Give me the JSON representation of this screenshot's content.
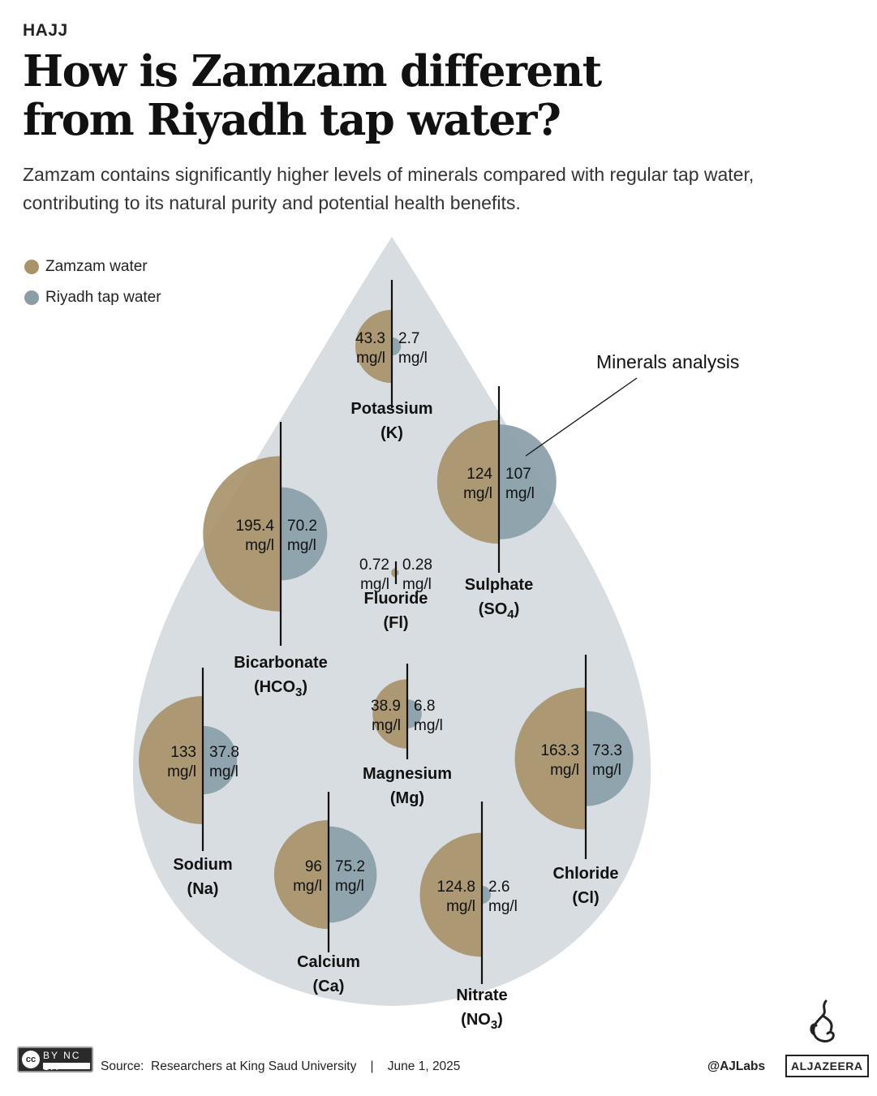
{
  "header": {
    "kicker": "HAJJ",
    "title": "How is Zamzam different from Riyadh tap water?",
    "subtitle": "Zamzam contains significantly higher levels of minerals compared with regular tap water, contributing to its natural purity and potential health benefits."
  },
  "legend": [
    {
      "label": "Zamzam water",
      "color": "#a8936a"
    },
    {
      "label": "Riyadh tap water",
      "color": "#8a9ea8"
    }
  ],
  "annotation": "Minerals analysis",
  "colors": {
    "drop": "#d7dde1",
    "zamzam": "#a8936a",
    "tap": "#8a9ea8",
    "axis": "#111111"
  },
  "chart_data": {
    "type": "paired semicircle (area) chart",
    "unit": "mg/l",
    "series": [
      {
        "name": "Zamzam water",
        "values": [
          43.3,
          124,
          195.4,
          0.72,
          38.9,
          163.3,
          133,
          96,
          124.8
        ]
      },
      {
        "name": "Riyadh tap water",
        "values": [
          2.7,
          107,
          70.2,
          0.28,
          6.8,
          73.3,
          37.8,
          75.2,
          2.6
        ]
      }
    ],
    "categories": [
      "Potassium (K)",
      "Sulphate (SO4)",
      "Bicarbonate (HCO3)",
      "Fluoride (Fl)",
      "Magnesium (Mg)",
      "Chloride (Cl)",
      "Sodium (Na)",
      "Calcium (Ca)",
      "Nitrate (NO3)"
    ],
    "minerals": [
      {
        "name": "Potassium",
        "symbol": "K",
        "zamzam": 43.3,
        "zamzam_label": "43.3",
        "tap": 2.7,
        "tap_label": "2.7"
      },
      {
        "name": "Sulphate",
        "symbol": "SO4",
        "zamzam": 124,
        "zamzam_label": "124",
        "tap": 107,
        "tap_label": "107"
      },
      {
        "name": "Bicarbonate",
        "symbol": "HCO3",
        "zamzam": 195.4,
        "zamzam_label": "195.4",
        "tap": 70.2,
        "tap_label": "70.2"
      },
      {
        "name": "Fluoride",
        "symbol": "Fl",
        "zamzam": 0.72,
        "zamzam_label": "0.72",
        "tap": 0.28,
        "tap_label": "0.28"
      },
      {
        "name": "Magnesium",
        "symbol": "Mg",
        "zamzam": 38.9,
        "zamzam_label": "38.9",
        "tap": 6.8,
        "tap_label": "6.8"
      },
      {
        "name": "Chloride",
        "symbol": "Cl",
        "zamzam": 163.3,
        "zamzam_label": "163.3",
        "tap": 73.3,
        "tap_label": "73.3"
      },
      {
        "name": "Sodium",
        "symbol": "Na",
        "zamzam": 133,
        "zamzam_label": "133",
        "tap": 37.8,
        "tap_label": "37.8"
      },
      {
        "name": "Calcium",
        "symbol": "Ca",
        "zamzam": 96,
        "zamzam_label": "96",
        "tap": 75.2,
        "tap_label": "75.2"
      },
      {
        "name": "Nitrate",
        "symbol": "NO3",
        "zamzam": 124.8,
        "zamzam_label": "124.8",
        "tap": 2.6,
        "tap_label": "2.6"
      }
    ]
  },
  "footer": {
    "source": "Source:  Researchers at King Saud University    |    June 1, 2025",
    "handle": "@AJLabs",
    "logo": "ALJAZEERA",
    "license": "BY  NC  SA"
  }
}
